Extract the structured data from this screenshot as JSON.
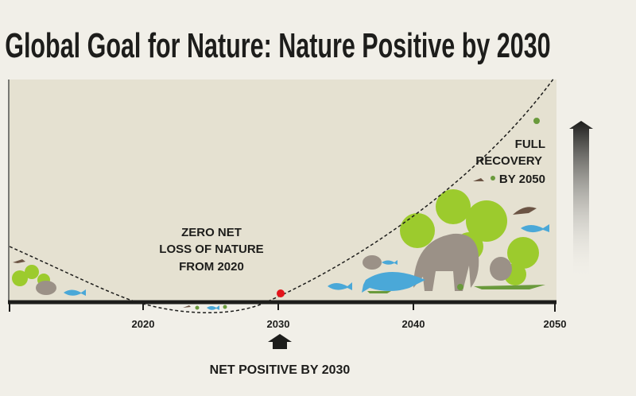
{
  "title": "Global Goal for Nature: Nature Positive by 2030",
  "annotations": {
    "zero_net": [
      "ZERO NET",
      "LOSS OF NATURE",
      "FROM 2020"
    ],
    "full_recovery": [
      "FULL",
      "RECOVERY",
      "BY 2050"
    ],
    "net_positive": "NET POSITIVE BY 2030"
  },
  "axis": {
    "ticks": [
      "2020",
      "2030",
      "2040",
      "2050"
    ]
  },
  "colors": {
    "background": "#f1efe8",
    "plot": "#e5e1d1",
    "marker": "#e3141b",
    "leaf": "#9ccb2d",
    "elephant": "#9b9187",
    "shark": "#4aa8d8",
    "croc": "#6a9a3c"
  }
}
